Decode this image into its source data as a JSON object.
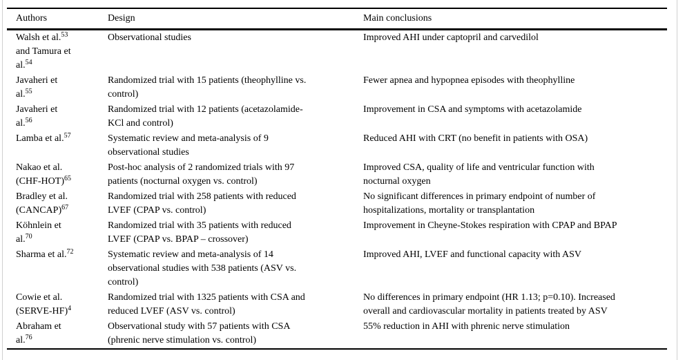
{
  "table": {
    "columns": [
      {
        "label": "Authors"
      },
      {
        "label": "Design"
      },
      {
        "label": "Main conclusions"
      }
    ],
    "rows": [
      {
        "author_lines": [
          {
            "text": "Walsh et al.",
            "sup": "53"
          },
          {
            "text": "and Tamura et"
          },
          {
            "text": "al.",
            "sup": "54"
          }
        ],
        "design_lines": [
          "Observational studies"
        ],
        "conclusion_lines": [
          "Improved AHI under captopril and carvedilol"
        ]
      },
      {
        "author_lines": [
          {
            "text": "Javaheri et"
          },
          {
            "text": "al.",
            "sup": "55"
          }
        ],
        "design_lines": [
          "Randomized trial with 15 patients (theophylline vs.",
          "control)"
        ],
        "conclusion_lines": [
          "Fewer apnea and hypopnea episodes with theophylline"
        ]
      },
      {
        "author_lines": [
          {
            "text": "Javaheri et"
          },
          {
            "text": "al.",
            "sup": "56"
          }
        ],
        "design_lines": [
          "Randomized trial with 12 patients (acetazolamide-",
          "KCl and control)"
        ],
        "conclusion_lines": [
          "Improvement in CSA and symptoms with acetazolamide"
        ]
      },
      {
        "author_lines": [
          {
            "text": "Lamba et al.",
            "sup": "57"
          }
        ],
        "design_lines": [
          "Systematic review and meta-analysis of 9",
          "observational studies"
        ],
        "conclusion_lines": [
          "Reduced AHI with CRT (no benefit in patients with OSA)"
        ]
      },
      {
        "author_lines": [
          {
            "text": "Nakao et al."
          },
          {
            "text": "(CHF-HOT)",
            "sup": "65"
          }
        ],
        "design_lines": [
          "Post-hoc analysis of 2 randomized trials with 97",
          "patients (nocturnal oxygen vs. control)"
        ],
        "conclusion_lines": [
          "Improved CSA, quality of life and ventricular function with",
          "nocturnal oxygen"
        ]
      },
      {
        "author_lines": [
          {
            "text": "Bradley et al."
          },
          {
            "text": "(CANCAP)",
            "sup": "67"
          }
        ],
        "design_lines": [
          "Randomized trial with 258 patients with reduced",
          "LVEF (CPAP vs. control)"
        ],
        "conclusion_lines": [
          "No significant differences in primary endpoint of number of",
          "hospitalizations, mortality or transplantation"
        ]
      },
      {
        "author_lines": [
          {
            "text": "Köhnlein et"
          },
          {
            "text": "al.",
            "sup": "70"
          }
        ],
        "design_lines": [
          "Randomized trial with 35 patients with reduced",
          "LVEF (CPAP vs. BPAP – crossover)"
        ],
        "conclusion_lines": [
          "Improvement in Cheyne-Stokes respiration with CPAP and BPAP"
        ]
      },
      {
        "author_lines": [
          {
            "text": "Sharma et al.",
            "sup": "72"
          }
        ],
        "design_lines": [
          "Systematic review and meta-analysis of 14",
          "observational studies with 538 patients (ASV vs.",
          "control)"
        ],
        "conclusion_lines": [
          "Improved AHI, LVEF and functional capacity with ASV"
        ]
      },
      {
        "author_lines": [
          {
            "text": "Cowie et al."
          },
          {
            "text": "(SERVE-HF)",
            "sup": "4"
          }
        ],
        "design_lines": [
          "Randomized trial with 1325 patients with CSA and",
          "reduced LVEF (ASV vs. control)"
        ],
        "conclusion_lines": [
          "No differences in primary endpoint (HR 1.13; p=0.10). Increased",
          "overall and cardiovascular mortality in patients treated by ASV"
        ]
      },
      {
        "author_lines": [
          {
            "text": "Abraham et"
          },
          {
            "text": "al.",
            "sup": "76"
          }
        ],
        "design_lines": [
          "Observational study with 57 patients with CSA",
          "(phrenic nerve stimulation vs. control)"
        ],
        "conclusion_lines": [
          "55% reduction in AHI with phrenic nerve stimulation"
        ]
      }
    ]
  },
  "colors": {
    "rule": "#000000",
    "frame_border": "#d0d0d0",
    "text": "#000000",
    "background": "#ffffff"
  }
}
